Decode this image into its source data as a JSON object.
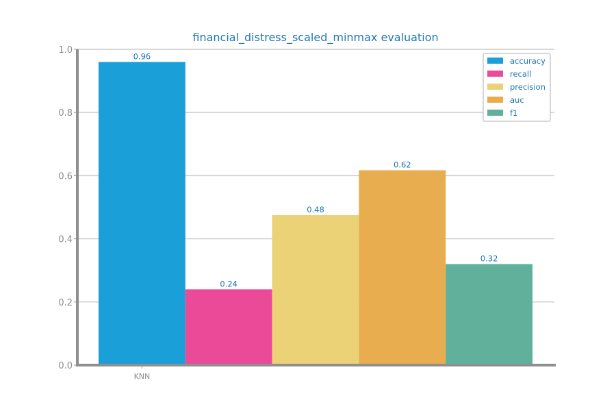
{
  "chart_data": {
    "type": "bar",
    "title": "financial_distress_scaled_minmax evaluation",
    "xlabel": "",
    "ylabel": "",
    "categories": [
      "KNN"
    ],
    "series": [
      {
        "name": "accuracy",
        "values": [
          0.96
        ],
        "label": "0.96",
        "color": "#1a9fd9"
      },
      {
        "name": "recall",
        "values": [
          0.24
        ],
        "label": "0.24",
        "color": "#ea4a98"
      },
      {
        "name": "precision",
        "values": [
          0.475
        ],
        "label": "0.48",
        "color": "#ebd276"
      },
      {
        "name": "auc",
        "values": [
          0.617
        ],
        "label": "0.62",
        "color": "#e8ad4e"
      },
      {
        "name": "f1",
        "values": [
          0.32
        ],
        "label": "0.32",
        "color": "#61b09b"
      }
    ],
    "ylim": [
      0,
      1.0
    ],
    "yticks": [
      "0.0",
      "0.2",
      "0.4",
      "0.6",
      "0.8",
      "1.0"
    ],
    "grid": true,
    "legend_position": "top-right",
    "colors": {
      "title": "#1f77b4",
      "labels": "#1b74b4",
      "tick": "#8c8c8c",
      "axis": "#8f8f8f",
      "grid": "#cccccc"
    }
  }
}
